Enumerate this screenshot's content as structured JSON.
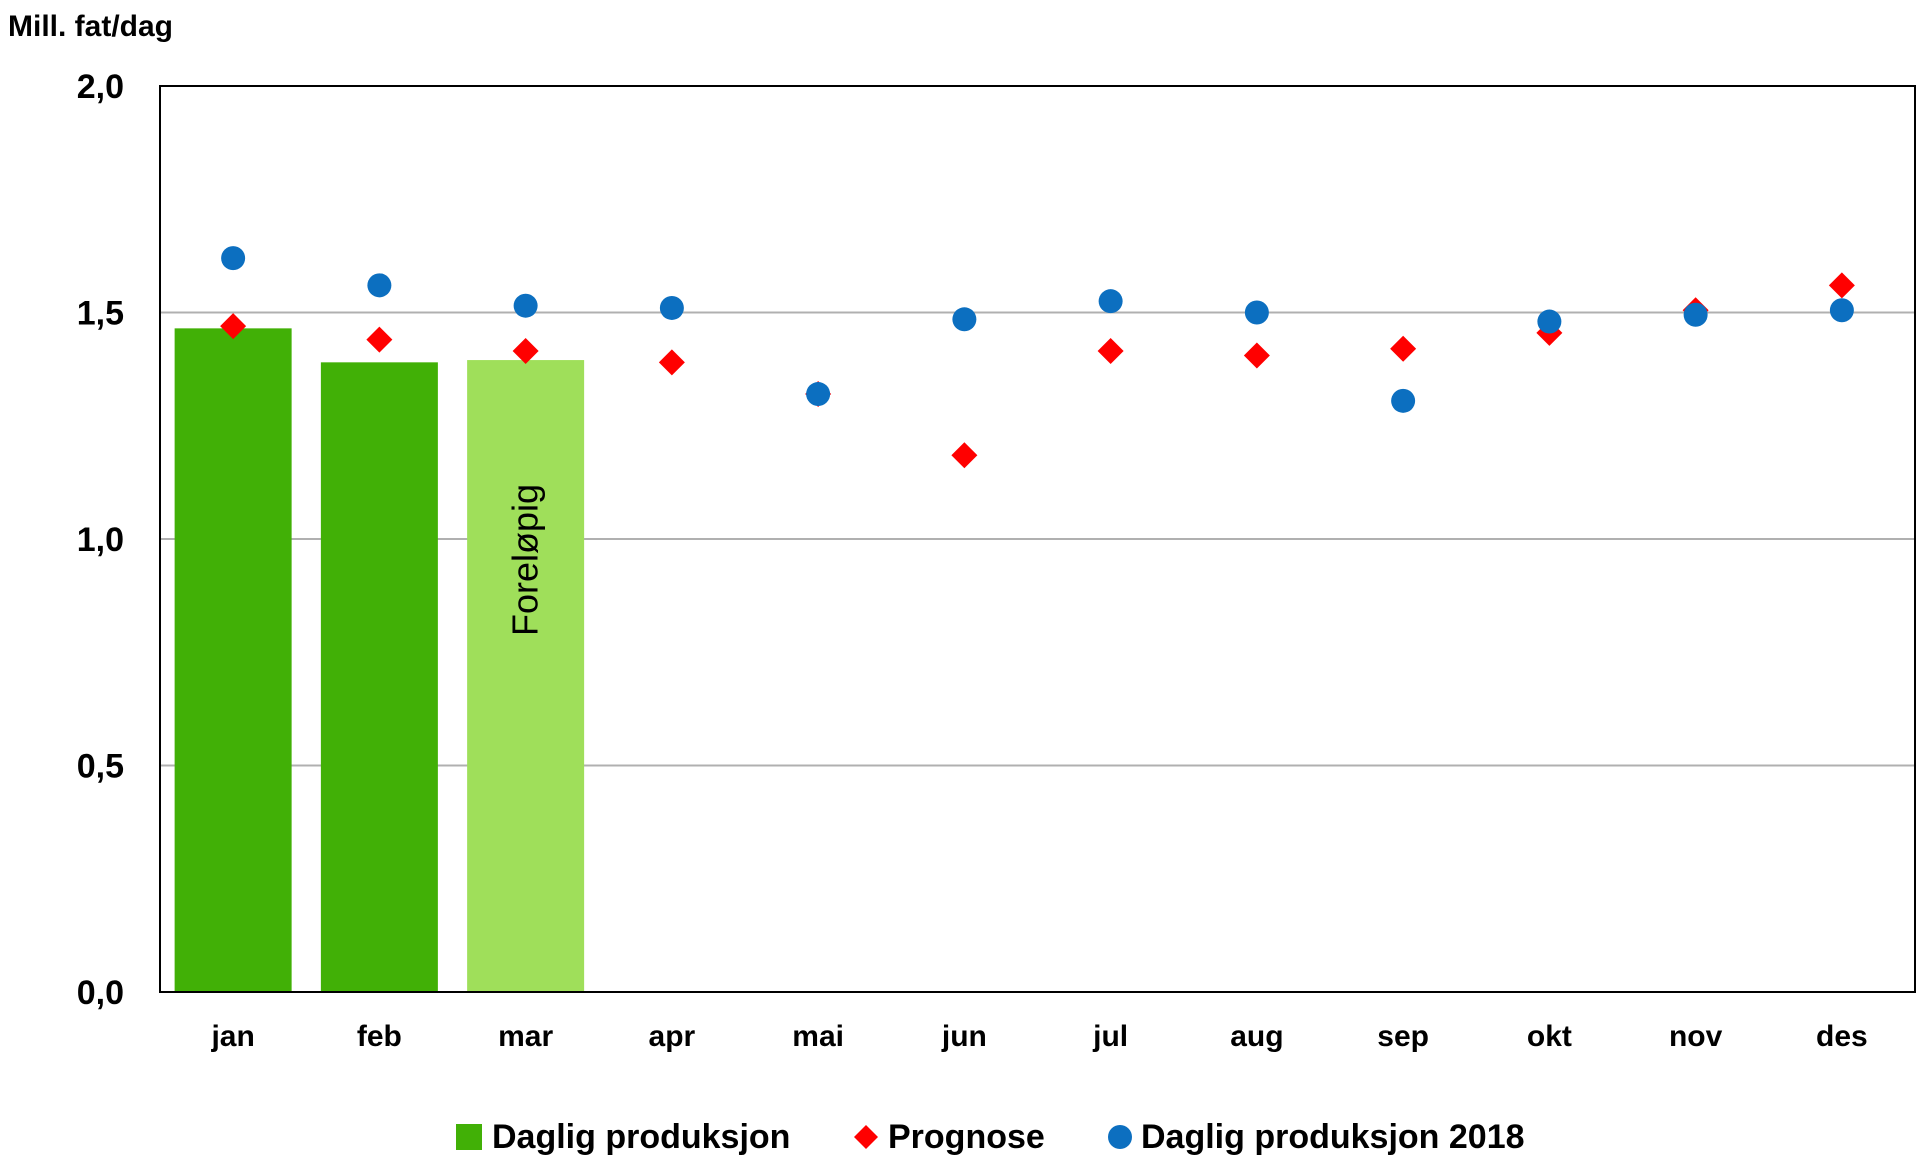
{
  "chart_data": {
    "type": "bar",
    "ylabel": "Mill. fat/dag",
    "ylim": [
      0,
      2.0
    ],
    "yticks": [
      "0,0",
      "0,5",
      "1,0",
      "1,5",
      "2,0"
    ],
    "ytick_values": [
      0,
      0.5,
      1.0,
      1.5,
      2.0
    ],
    "grid": true,
    "categories": [
      "jan",
      "feb",
      "mar",
      "apr",
      "mai",
      "jun",
      "jul",
      "aug",
      "sep",
      "okt",
      "nov",
      "des"
    ],
    "series": [
      {
        "name": "Daglig produksjon",
        "kind": "bar",
        "color": "#41b006",
        "values": [
          1.465,
          1.39,
          null,
          null,
          null,
          null,
          null,
          null,
          null,
          null,
          null,
          null
        ]
      },
      {
        "name": "Prognose",
        "kind": "marker-diamond",
        "color": "#ff0000",
        "values": [
          1.47,
          1.44,
          1.415,
          1.39,
          1.32,
          1.185,
          1.415,
          1.405,
          1.42,
          1.455,
          1.505,
          1.56
        ]
      },
      {
        "name": "Daglig produksjon 2018",
        "kind": "marker-circle",
        "color": "#0c6fc0",
        "values": [
          1.62,
          1.56,
          1.515,
          1.51,
          1.32,
          1.485,
          1.525,
          1.5,
          1.305,
          1.48,
          1.495,
          1.505
        ]
      }
    ],
    "preliminary_bar": {
      "category": "mar",
      "value": 1.395,
      "color": "#9fdf5a",
      "label": "Foreløpig"
    },
    "legend_position": "bottom"
  }
}
